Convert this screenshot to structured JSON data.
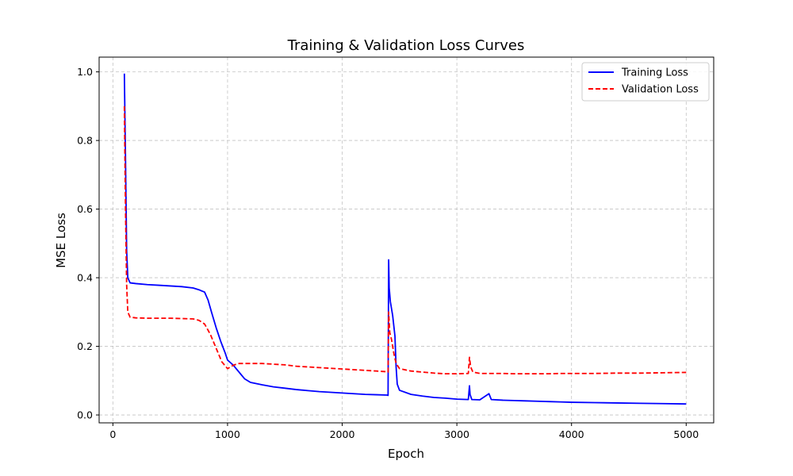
{
  "chart_data": {
    "type": "line",
    "title": "Training & Validation Loss Curves",
    "xlabel": "Epoch",
    "ylabel": "MSE Loss",
    "xlim": [
      -120,
      5240
    ],
    "ylim": [
      -0.023,
      1.043
    ],
    "xticks": [
      0,
      1000,
      2000,
      3000,
      4000,
      5000
    ],
    "yticks": [
      0.0,
      0.2,
      0.4,
      0.6,
      0.8,
      1.0
    ],
    "xtick_labels": [
      "0",
      "1000",
      "2000",
      "3000",
      "4000",
      "5000"
    ],
    "ytick_labels": [
      "0.0",
      "0.2",
      "0.4",
      "0.6",
      "0.8",
      "1.0"
    ],
    "grid": true,
    "legend_position": "top-right",
    "series": [
      {
        "name": "Training Loss",
        "color": "#0000ff",
        "style": "solid",
        "x": [
          100,
          110,
          120,
          130,
          150,
          200,
          300,
          400,
          500,
          600,
          700,
          750,
          800,
          830,
          860,
          900,
          940,
          980,
          1000,
          1050,
          1100,
          1150,
          1200,
          1300,
          1400,
          1500,
          1600,
          1700,
          1800,
          1900,
          2000,
          2100,
          2200,
          2300,
          2390,
          2400,
          2405,
          2410,
          2420,
          2440,
          2460,
          2470,
          2480,
          2500,
          2600,
          2700,
          2800,
          2900,
          3000,
          3100,
          3110,
          3115,
          3130,
          3200,
          3280,
          3300,
          3400,
          3500,
          3600,
          3700,
          3800,
          3900,
          4000,
          4200,
          4400,
          4600,
          4800,
          5000
        ],
        "y": [
          0.995,
          0.75,
          0.48,
          0.4,
          0.385,
          0.383,
          0.38,
          0.378,
          0.376,
          0.374,
          0.37,
          0.365,
          0.358,
          0.335,
          0.3,
          0.255,
          0.215,
          0.18,
          0.16,
          0.145,
          0.125,
          0.105,
          0.095,
          0.088,
          0.082,
          0.078,
          0.074,
          0.071,
          0.068,
          0.066,
          0.064,
          0.062,
          0.06,
          0.059,
          0.058,
          0.057,
          0.452,
          0.37,
          0.33,
          0.29,
          0.23,
          0.14,
          0.09,
          0.072,
          0.06,
          0.055,
          0.051,
          0.049,
          0.046,
          0.045,
          0.085,
          0.06,
          0.045,
          0.044,
          0.062,
          0.045,
          0.043,
          0.042,
          0.041,
          0.04,
          0.039,
          0.038,
          0.037,
          0.036,
          0.035,
          0.034,
          0.033,
          0.032
        ]
      },
      {
        "name": "Validation Loss",
        "color": "#ff0000",
        "style": "dashed",
        "x": [
          100,
          110,
          120,
          130,
          150,
          200,
          300,
          400,
          500,
          600,
          700,
          750,
          800,
          850,
          900,
          950,
          1000,
          1050,
          1100,
          1200,
          1300,
          1400,
          1500,
          1600,
          1700,
          1800,
          1900,
          2000,
          2100,
          2200,
          2300,
          2390,
          2400,
          2405,
          2415,
          2430,
          2450,
          2470,
          2500,
          2600,
          2700,
          2800,
          2900,
          3000,
          3100,
          3110,
          3120,
          3140,
          3200,
          3300,
          3400,
          3500,
          3600,
          3700,
          3800,
          3900,
          4000,
          4200,
          4400,
          4600,
          4800,
          5000
        ],
        "y": [
          0.9,
          0.6,
          0.38,
          0.3,
          0.285,
          0.283,
          0.282,
          0.282,
          0.282,
          0.281,
          0.28,
          0.276,
          0.265,
          0.235,
          0.195,
          0.155,
          0.135,
          0.145,
          0.15,
          0.15,
          0.15,
          0.148,
          0.146,
          0.142,
          0.14,
          0.138,
          0.136,
          0.134,
          0.132,
          0.13,
          0.128,
          0.126,
          0.125,
          0.3,
          0.24,
          0.22,
          0.18,
          0.15,
          0.135,
          0.128,
          0.125,
          0.122,
          0.12,
          0.12,
          0.121,
          0.168,
          0.14,
          0.125,
          0.121,
          0.121,
          0.121,
          0.12,
          0.12,
          0.12,
          0.12,
          0.121,
          0.121,
          0.121,
          0.122,
          0.122,
          0.123,
          0.124
        ]
      }
    ]
  }
}
